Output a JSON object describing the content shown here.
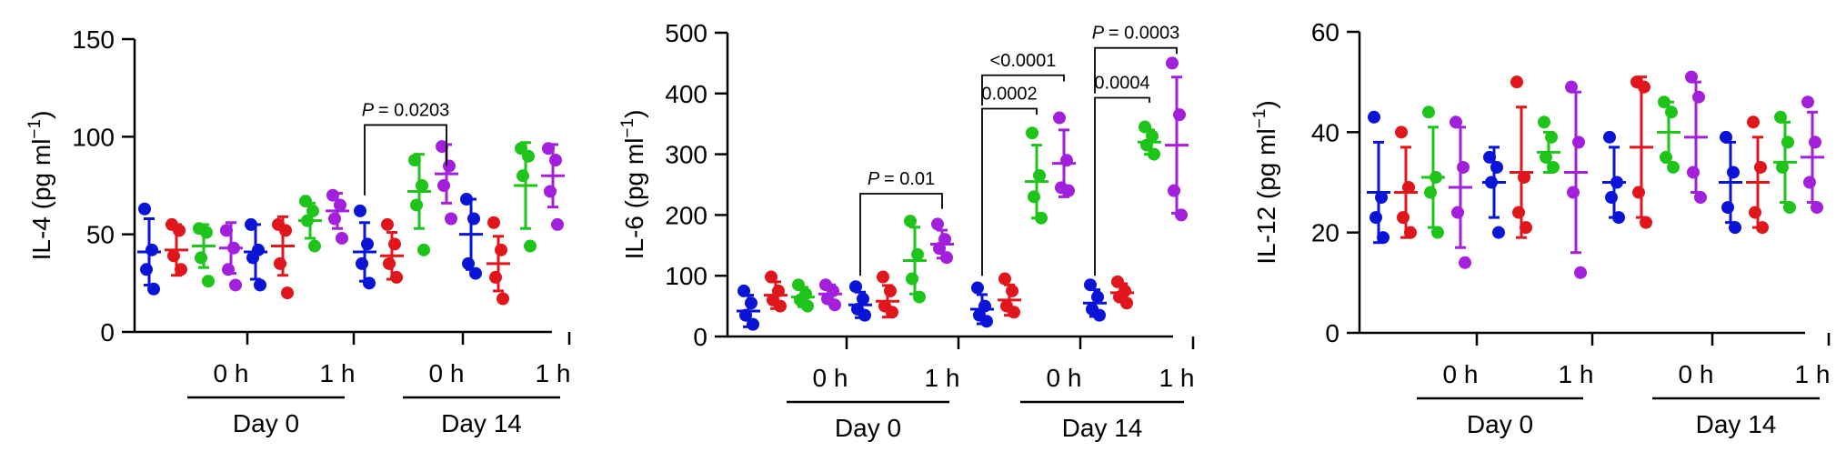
{
  "colors": {
    "axis": "#000000",
    "blue": "#0a14d6",
    "red": "#e0161c",
    "green": "#1fc41a",
    "purple": "#a21fdb"
  },
  "chart_data": [
    {
      "type": "scatter",
      "ylabel": "IL-4 (pg ml⁻¹)",
      "ylabel_main": "IL-4 (pg ml",
      "ylabel_sup": "−1",
      "ylabel_end": ")",
      "ylim": [
        0,
        150
      ],
      "yticks": [
        "0",
        "50",
        "100",
        "150"
      ],
      "xtick_labels": [
        "0 h",
        "1 h",
        "0 h",
        "1 h"
      ],
      "day_labels": [
        "Day 0",
        "Day 14"
      ],
      "series_colors": [
        "blue",
        "red",
        "green",
        "purple"
      ],
      "groups": [
        {
          "series": [
            {
              "points": [
                63,
                42,
                32,
                22
              ],
              "mean": 41,
              "sd": 17
            },
            {
              "points": [
                55,
                52,
                39,
                32
              ],
              "mean": 42,
              "sd": 13
            },
            {
              "points": [
                53,
                51,
                38,
                26
              ],
              "mean": 44,
              "sd": 11
            },
            {
              "points": [
                52,
                43,
                32,
                24
              ],
              "mean": 43,
              "sd": 13
            }
          ]
        },
        {
          "series": [
            {
              "points": [
                55,
                42,
                38,
                24
              ],
              "mean": 41,
              "sd": 14
            },
            {
              "points": [
                55,
                52,
                35,
                20
              ],
              "mean": 44,
              "sd": 15
            },
            {
              "points": [
                67,
                62,
                57,
                44
              ],
              "mean": 57,
              "sd": 9
            },
            {
              "points": [
                70,
                65,
                58,
                48
              ],
              "mean": 62,
              "sd": 9
            }
          ]
        },
        {
          "series": [
            {
              "points": [
                62,
                45,
                35,
                25
              ],
              "mean": 41,
              "sd": 15
            },
            {
              "points": [
                55,
                45,
                35,
                28
              ],
              "mean": 39,
              "sd": 12
            },
            {
              "points": [
                88,
                75,
                65,
                42
              ],
              "mean": 72,
              "sd": 19
            },
            {
              "points": [
                95,
                85,
                75,
                58
              ],
              "mean": 81,
              "sd": 15
            }
          ]
        },
        {
          "series": [
            {
              "points": [
                68,
                58,
                35,
                30
              ],
              "mean": 50,
              "sd": 18
            },
            {
              "points": [
                56,
                42,
                28,
                17
              ],
              "mean": 35,
              "sd": 14
            },
            {
              "points": [
                94,
                90,
                80,
                44
              ],
              "mean": 75,
              "sd": 22
            },
            {
              "points": [
                94,
                88,
                72,
                55
              ],
              "mean": 80,
              "sd": 16
            }
          ]
        }
      ],
      "annotations": [
        {
          "text": "= 0.0203",
          "italic_prefix": "P",
          "g1": 2,
          "s1": 0,
          "g2": 2,
          "s2": 3,
          "y_from": 70,
          "y_to": 85,
          "y_top": 106
        }
      ]
    },
    {
      "type": "scatter",
      "ylabel": "IL-6 (pg ml⁻¹)",
      "ylabel_main": "IL-6 (pg ml",
      "ylabel_sup": "−1",
      "ylabel_end": ")",
      "ylim": [
        0,
        500
      ],
      "yticks": [
        "0",
        "100",
        "200",
        "300",
        "400",
        "500"
      ],
      "xtick_labels": [
        "0 h",
        "1 h",
        "0 h",
        "1 h"
      ],
      "day_labels": [
        "Day 0",
        "Day 14"
      ],
      "series_colors": [
        "blue",
        "red",
        "green",
        "purple"
      ],
      "groups": [
        {
          "series": [
            {
              "points": [
                75,
                55,
                35,
                20
              ],
              "mean": 42,
              "sd": 26
            },
            {
              "points": [
                98,
                75,
                60,
                50
              ],
              "mean": 68,
              "sd": 22
            },
            {
              "points": [
                85,
                70,
                60,
                50
              ],
              "mean": 65,
              "sd": 16
            },
            {
              "points": [
                85,
                75,
                62,
                52
              ],
              "mean": 70,
              "sd": 15
            }
          ]
        },
        {
          "series": [
            {
              "points": [
                82,
                62,
                45,
                35
              ],
              "mean": 52,
              "sd": 21
            },
            {
              "points": [
                98,
                75,
                50,
                40
              ],
              "mean": 58,
              "sd": 26
            },
            {
              "points": [
                190,
                135,
                95,
                65
              ],
              "mean": 125,
              "sd": 55
            },
            {
              "points": [
                185,
                160,
                145,
                130
              ],
              "mean": 152,
              "sd": 23
            }
          ]
        },
        {
          "series": [
            {
              "points": [
                80,
                50,
                35,
                25
              ],
              "mean": 45,
              "sd": 24
            },
            {
              "points": [
                95,
                75,
                50,
                40
              ],
              "mean": 60,
              "sd": 25
            },
            {
              "points": [
                335,
                265,
                230,
                195
              ],
              "mean": 255,
              "sd": 60
            },
            {
              "points": [
                360,
                290,
                245,
                240
              ],
              "mean": 285,
              "sd": 55
            }
          ]
        },
        {
          "series": [
            {
              "points": [
                85,
                65,
                45,
                35
              ],
              "mean": 55,
              "sd": 22
            },
            {
              "points": [
                90,
                75,
                65,
                55
              ],
              "mean": 72,
              "sd": 15
            },
            {
              "points": [
                345,
                330,
                315,
                300
              ],
              "mean": 320,
              "sd": 20
            },
            {
              "points": [
                450,
                365,
                240,
                200
              ],
              "mean": 315,
              "sd": 112
            }
          ]
        }
      ],
      "annotations": [
        {
          "text": "= 0.01",
          "italic_prefix": "P",
          "g1": 1,
          "s1": 0,
          "g2": 1,
          "s2": 3,
          "y_from": 100,
          "y_to": 210,
          "y_top": 235
        },
        {
          "text": "0.0002",
          "italic_prefix": "",
          "g1": 2,
          "s1": 0,
          "g2": 2,
          "s2": 2,
          "y_from": 100,
          "y_to": 365,
          "y_top": 375
        },
        {
          "text": "<0.0001",
          "italic_prefix": "",
          "g1": 2,
          "s1": 0,
          "g2": 2,
          "s2": 3,
          "y_from": 380,
          "y_to": 420,
          "y_top": 430
        },
        {
          "text": "0.0004",
          "italic_prefix": "",
          "g1": 3,
          "s1": 0,
          "g2": 3,
          "s2": 2,
          "y_from": 100,
          "y_to": 385,
          "y_top": 393
        },
        {
          "text": "= 0.0003",
          "italic_prefix": "P",
          "g1": 3,
          "s1": 0,
          "g2": 3,
          "s2": 3,
          "y_from": 400,
          "y_to": 465,
          "y_top": 475
        }
      ]
    },
    {
      "type": "scatter",
      "ylabel": "IL-12 (pg ml⁻¹)",
      "ylabel_main": "IL-12 (pg ml",
      "ylabel_sup": "−1",
      "ylabel_end": ")",
      "ylim": [
        0,
        60
      ],
      "yticks": [
        "0",
        "20",
        "40",
        "60"
      ],
      "xtick_labels": [
        "0 h",
        "1 h",
        "0 h",
        "1 h"
      ],
      "day_labels": [
        "Day 0",
        "Day 14"
      ],
      "series_colors": [
        "blue",
        "red",
        "green",
        "purple"
      ],
      "groups": [
        {
          "series": [
            {
              "points": [
                43,
                27,
                23,
                19
              ],
              "mean": 28,
              "sd": 10
            },
            {
              "points": [
                40,
                29,
                23,
                20
              ],
              "mean": 28,
              "sd": 9
            },
            {
              "points": [
                44,
                31,
                28,
                20
              ],
              "mean": 31,
              "sd": 10
            },
            {
              "points": [
                42,
                33,
                24,
                14
              ],
              "mean": 29,
              "sd": 12
            }
          ]
        },
        {
          "series": [
            {
              "points": [
                35,
                33,
                30,
                20
              ],
              "mean": 30,
              "sd": 7
            },
            {
              "points": [
                50,
                31,
                24,
                21
              ],
              "mean": 32,
              "sd": 13
            },
            {
              "points": [
                42,
                39,
                35,
                33
              ],
              "mean": 36,
              "sd": 4
            },
            {
              "points": [
                49,
                38,
                28,
                12
              ],
              "mean": 32,
              "sd": 16
            }
          ]
        },
        {
          "series": [
            {
              "points": [
                39,
                30,
                27,
                23
              ],
              "mean": 30,
              "sd": 7
            },
            {
              "points": [
                50,
                49,
                28,
                22
              ],
              "mean": 37,
              "sd": 14
            },
            {
              "points": [
                46,
                44,
                35,
                33
              ],
              "mean": 40,
              "sd": 6
            },
            {
              "points": [
                51,
                47,
                32,
                27
              ],
              "mean": 39,
              "sd": 11
            }
          ]
        },
        {
          "series": [
            {
              "points": [
                39,
                32,
                25,
                21
              ],
              "mean": 30,
              "sd": 8
            },
            {
              "points": [
                42,
                33,
                24,
                21
              ],
              "mean": 30,
              "sd": 9
            },
            {
              "points": [
                43,
                38,
                33,
                25
              ],
              "mean": 34,
              "sd": 8
            },
            {
              "points": [
                46,
                38,
                30,
                25
              ],
              "mean": 35,
              "sd": 9
            }
          ]
        }
      ],
      "annotations": []
    }
  ]
}
